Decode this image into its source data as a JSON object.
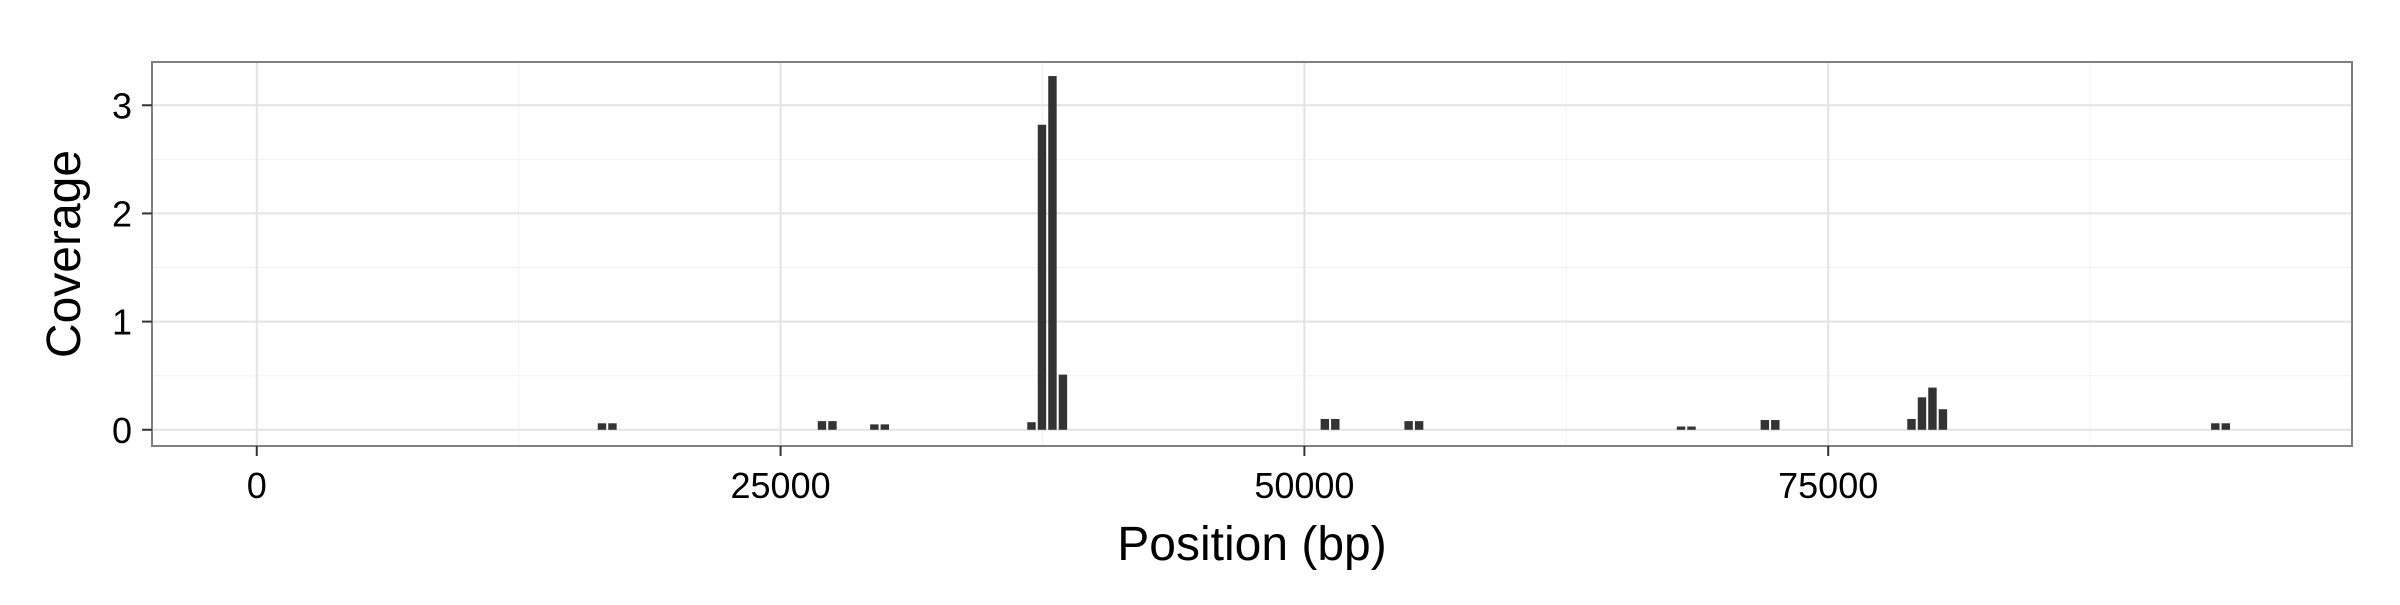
{
  "chart_data": {
    "type": "bar",
    "xlabel": "Position (bp)",
    "ylabel": "Coverage",
    "xlim": [
      -5000,
      100000
    ],
    "ylim": [
      -0.15,
      3.4
    ],
    "x_ticks": [
      0,
      25000,
      50000,
      75000
    ],
    "x_tick_labels": [
      "0",
      "25000",
      "50000",
      "75000"
    ],
    "y_ticks": [
      0,
      1,
      2,
      3
    ],
    "y_tick_labels": [
      "0",
      "1",
      "2",
      "3"
    ],
    "grid": true,
    "bar_width": 450,
    "bar_color": "#333333",
    "x": [
      16500,
      17000,
      27000,
      27500,
      29500,
      30000,
      37000,
      37500,
      38000,
      38500,
      51000,
      51500,
      55000,
      55500,
      68000,
      68500,
      72000,
      72500,
      79000,
      79500,
      80000,
      80500,
      93500,
      94000
    ],
    "values": [
      0.06,
      0.06,
      0.08,
      0.08,
      0.05,
      0.05,
      0.07,
      2.82,
      3.27,
      0.51,
      0.1,
      0.1,
      0.08,
      0.08,
      0.03,
      0.03,
      0.09,
      0.09,
      0.1,
      0.3,
      0.39,
      0.19,
      0.06,
      0.06
    ]
  }
}
